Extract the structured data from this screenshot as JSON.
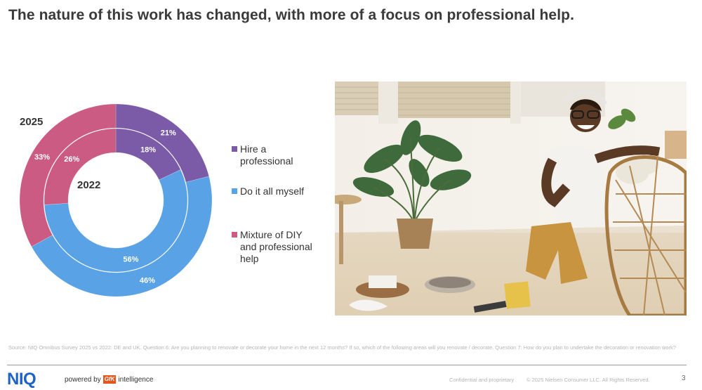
{
  "title": "The nature of this work has changed, with more of a focus on professional help.",
  "chart_data": {
    "type": "donut",
    "categories": [
      "Hire a professional",
      "Do it all myself",
      "Mixture of DIY and professional help"
    ],
    "colors": [
      "#7b5aa8",
      "#5aa2e6",
      "#cc5b84"
    ],
    "series": [
      {
        "name": "2025",
        "values": [
          21,
          46,
          33
        ],
        "labels": [
          "21%",
          "46%",
          "33%"
        ]
      },
      {
        "name": "2022",
        "values": [
          18,
          56,
          26
        ],
        "labels": [
          "18%",
          "56%",
          "26%"
        ]
      }
    ]
  },
  "legend": [
    {
      "label_lines": [
        "Hire a",
        "professional"
      ],
      "color": "#7b5aa8"
    },
    {
      "label_lines": [
        "Do it all myself"
      ],
      "color": "#5aa2e6"
    },
    {
      "label_lines": [
        "Mixture of DIY",
        "and professional",
        "help"
      ],
      "color": "#cc5b84"
    }
  ],
  "source": "Source: NIQ Omnibus Survey 2025 vs 2022. DE and UK. Question 6: Are you planning to renovate or decorate your home in the next 12 months? If so, which of the following areas will you renovate / decorate. Question 7: How do you plan to undertake the decoration or renovation work?",
  "footer": {
    "logo": "NIQ",
    "powered_by": "powered by",
    "gfk": "GfK",
    "intelligence": "intelligence",
    "confidential": "Confidential and proprietary",
    "copyright": "© 2025 Nielsen Consumer LLC. All Rights Reserved.",
    "page_number": "3"
  }
}
